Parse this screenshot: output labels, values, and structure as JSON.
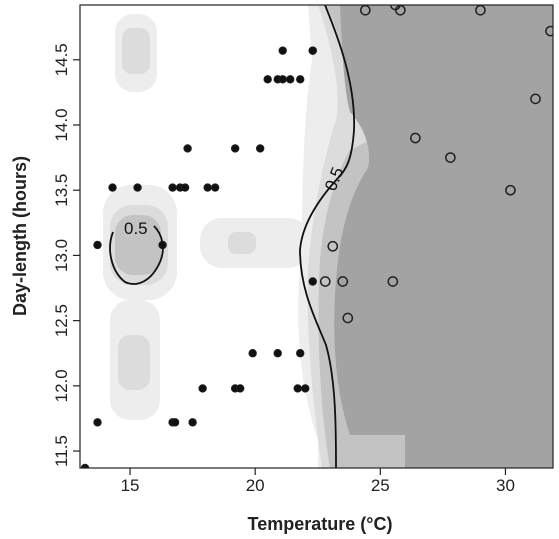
{
  "chart_data": {
    "type": "scatter",
    "title": "",
    "xlabel": "Temperature (°C)",
    "ylabel": "Day-length (hours)",
    "xlim": [
      13.0,
      31.9
    ],
    "ylim": [
      11.37,
      14.92
    ],
    "x_ticks": [
      "15",
      "20",
      "25",
      "30"
    ],
    "x_tick_values": [
      15,
      20,
      25,
      30
    ],
    "y_ticks": [
      "11.5",
      "12.0",
      "12.5",
      "13.0",
      "13.5",
      "14.0",
      "14.5"
    ],
    "y_tick_values": [
      11.5,
      12.0,
      12.5,
      13.0,
      13.5,
      14.0,
      14.5
    ],
    "contour_level_label": "0.5",
    "shading_colors": [
      "#ededed",
      "#dcdcdc",
      "#c3c3c3",
      "#a3a3a3"
    ],
    "series": [
      {
        "marker": "filled",
        "points": [
          [
            13.2,
            11.37
          ],
          [
            13.7,
            11.72
          ],
          [
            13.7,
            13.08
          ],
          [
            14.3,
            13.52
          ],
          [
            15.3,
            13.52
          ],
          [
            16.3,
            13.08
          ],
          [
            16.7,
            13.52
          ],
          [
            17.0,
            13.52
          ],
          [
            17.2,
            13.52
          ],
          [
            17.3,
            13.82
          ],
          [
            16.7,
            11.72
          ],
          [
            16.8,
            11.72
          ],
          [
            17.5,
            11.72
          ],
          [
            17.9,
            11.98
          ],
          [
            18.1,
            13.52
          ],
          [
            18.4,
            13.52
          ],
          [
            19.2,
            13.82
          ],
          [
            19.2,
            11.98
          ],
          [
            19.4,
            11.98
          ],
          [
            19.9,
            12.25
          ],
          [
            20.2,
            13.82
          ],
          [
            20.5,
            14.35
          ],
          [
            20.9,
            14.35
          ],
          [
            20.9,
            12.25
          ],
          [
            21.1,
            14.35
          ],
          [
            21.1,
            14.57
          ],
          [
            21.4,
            14.35
          ],
          [
            21.7,
            11.98
          ],
          [
            21.8,
            14.35
          ],
          [
            21.8,
            12.25
          ],
          [
            22.0,
            11.98
          ],
          [
            22.3,
            14.57
          ],
          [
            22.3,
            14.57
          ],
          [
            22.3,
            12.8
          ]
        ]
      },
      {
        "marker": "open",
        "points": [
          [
            22.8,
            12.8
          ],
          [
            23.1,
            13.07
          ],
          [
            23.5,
            12.8
          ],
          [
            23.7,
            12.52
          ],
          [
            24.4,
            14.88
          ],
          [
            25.5,
            12.8
          ],
          [
            25.6,
            14.92
          ],
          [
            25.8,
            14.88
          ],
          [
            26.4,
            13.9
          ],
          [
            27.8,
            13.75
          ],
          [
            29.0,
            14.88
          ],
          [
            30.2,
            13.5
          ],
          [
            31.2,
            14.2
          ],
          [
            31.8,
            14.72
          ]
        ]
      }
    ]
  }
}
